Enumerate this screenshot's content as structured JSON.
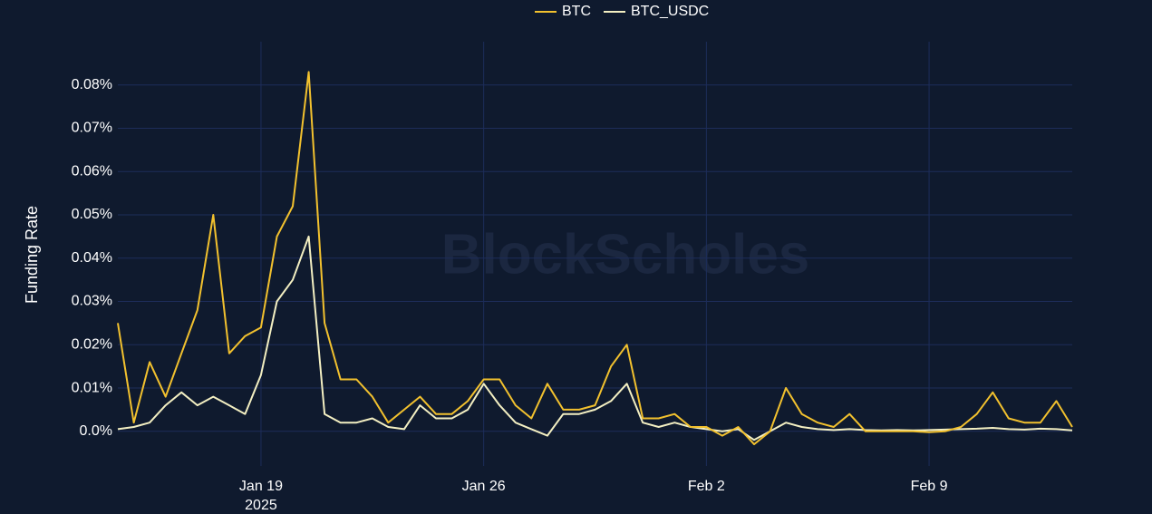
{
  "chart_data": {
    "type": "line",
    "y_label": "Funding Rate",
    "watermark": "BlockScholes",
    "x": [
      "2025-01-14T12:00",
      "2025-01-15T00:00",
      "2025-01-15T12:00",
      "2025-01-16T00:00",
      "2025-01-16T12:00",
      "2025-01-17T00:00",
      "2025-01-17T12:00",
      "2025-01-18T00:00",
      "2025-01-18T12:00",
      "2025-01-19T00:00",
      "2025-01-19T12:00",
      "2025-01-20T00:00",
      "2025-01-20T12:00",
      "2025-01-21T00:00",
      "2025-01-21T12:00",
      "2025-01-22T00:00",
      "2025-01-22T12:00",
      "2025-01-23T00:00",
      "2025-01-23T12:00",
      "2025-01-24T00:00",
      "2025-01-24T12:00",
      "2025-01-25T00:00",
      "2025-01-25T12:00",
      "2025-01-26T00:00",
      "2025-01-26T12:00",
      "2025-01-27T00:00",
      "2025-01-27T12:00",
      "2025-01-28T00:00",
      "2025-01-28T12:00",
      "2025-01-29T00:00",
      "2025-01-29T12:00",
      "2025-01-30T00:00",
      "2025-01-30T12:00",
      "2025-01-31T00:00",
      "2025-01-31T12:00",
      "2025-02-01T00:00",
      "2025-02-01T12:00",
      "2025-02-02T00:00",
      "2025-02-02T12:00",
      "2025-02-03T00:00",
      "2025-02-03T12:00",
      "2025-02-04T00:00",
      "2025-02-04T12:00",
      "2025-02-05T00:00",
      "2025-02-05T12:00",
      "2025-02-06T00:00",
      "2025-02-06T12:00",
      "2025-02-07T00:00",
      "2025-02-07T12:00",
      "2025-02-08T00:00",
      "2025-02-08T12:00",
      "2025-02-09T00:00",
      "2025-02-09T12:00",
      "2025-02-10T00:00",
      "2025-02-10T12:00",
      "2025-02-11T00:00",
      "2025-02-11T12:00",
      "2025-02-12T00:00",
      "2025-02-12T12:00",
      "2025-02-13T00:00",
      "2025-02-13T12:00"
    ],
    "series": [
      {
        "name": "BTC",
        "color": "#f2c12e",
        "values": [
          0.025,
          0.002,
          0.016,
          0.008,
          0.018,
          0.028,
          0.05,
          0.018,
          0.022,
          0.024,
          0.045,
          0.052,
          0.083,
          0.025,
          0.012,
          0.012,
          0.008,
          0.002,
          0.005,
          0.008,
          0.004,
          0.004,
          0.007,
          0.012,
          0.012,
          0.006,
          0.003,
          0.011,
          0.005,
          0.005,
          0.006,
          0.015,
          0.02,
          0.003,
          0.003,
          0.004,
          0.001,
          0.001,
          -0.001,
          0.001,
          -0.003,
          0.0,
          0.01,
          0.004,
          0.002,
          0.001,
          0.004,
          0.0,
          0.0,
          0.0,
          0.0,
          -0.0002,
          0.0,
          0.001,
          0.004,
          0.009,
          0.003,
          0.002,
          0.002,
          0.007,
          0.001
        ]
      },
      {
        "name": "BTC_USDC",
        "color": "#f3efc2",
        "values": [
          0.0005,
          0.001,
          0.002,
          0.006,
          0.009,
          0.006,
          0.008,
          0.006,
          0.004,
          0.013,
          0.03,
          0.035,
          0.045,
          0.004,
          0.002,
          0.002,
          0.003,
          0.001,
          0.0005,
          0.006,
          0.003,
          0.003,
          0.005,
          0.011,
          0.006,
          0.002,
          0.0005,
          -0.001,
          0.004,
          0.004,
          0.005,
          0.007,
          0.011,
          0.002,
          0.001,
          0.002,
          0.001,
          0.0005,
          0.0,
          0.0005,
          -0.002,
          0.0,
          0.002,
          0.001,
          0.0005,
          0.0003,
          0.0005,
          0.0003,
          0.0002,
          0.0003,
          0.0002,
          0.0003,
          0.0004,
          0.0005,
          0.0006,
          0.0008,
          0.0005,
          0.0004,
          0.0006,
          0.0005,
          0.0002
        ]
      }
    ],
    "xlim": [
      "2025-01-14T12:00",
      "2025-02-13T12:00"
    ],
    "xticks": [
      {
        "value": "2025-01-19T00:00",
        "label": "Jan 19"
      },
      {
        "value": "2025-01-26T00:00",
        "label": "Jan 26"
      },
      {
        "value": "2025-02-02T00:00",
        "label": "Feb 2"
      },
      {
        "value": "2025-02-09T00:00",
        "label": "Feb 9"
      }
    ],
    "xtick_year": "2025",
    "ylim": [
      -0.008,
      0.09
    ],
    "yticks": [
      {
        "value": 0,
        "label": "0.0%"
      },
      {
        "value": 0.01,
        "label": "0.01%"
      },
      {
        "value": 0.02,
        "label": "0.02%"
      },
      {
        "value": 0.03,
        "label": "0.03%"
      },
      {
        "value": 0.04,
        "label": "0.04%"
      },
      {
        "value": 0.05,
        "label": "0.05%"
      },
      {
        "value": 0.06,
        "label": "0.06%"
      },
      {
        "value": 0.07,
        "label": "0.07%"
      },
      {
        "value": 0.08,
        "label": "0.08%"
      }
    ],
    "grid": true,
    "legend": "top"
  }
}
